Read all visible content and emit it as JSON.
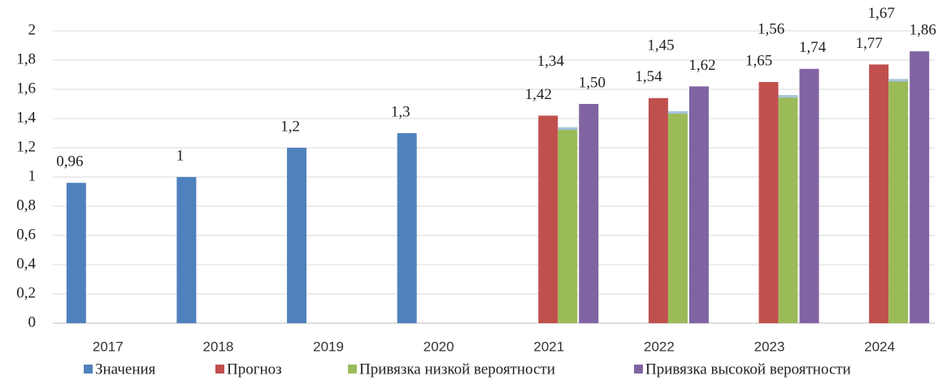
{
  "chart_data": {
    "type": "bar",
    "categories": [
      "2017",
      "2018",
      "2019",
      "2020",
      "2021",
      "2022",
      "2023",
      "2024"
    ],
    "series": [
      {
        "name": "Значения",
        "color": "#4f81bd",
        "values": [
          0.96,
          1,
          1.2,
          1.3,
          null,
          null,
          null,
          null
        ],
        "value_labels": [
          "0,96",
          "1",
          "1,2",
          "1,3",
          null,
          null,
          null,
          null
        ]
      },
      {
        "name": "Прогноз",
        "color": "#c0504d",
        "values": [
          null,
          null,
          null,
          null,
          1.42,
          1.54,
          1.65,
          1.77
        ],
        "value_labels": [
          null,
          null,
          null,
          null,
          "1,42",
          "1,54",
          "1,65",
          "1,77"
        ]
      },
      {
        "name": "Привязка низкой вероятности",
        "color": "#9bbb59",
        "values": [
          null,
          null,
          null,
          null,
          1.34,
          1.45,
          1.56,
          1.67
        ],
        "value_labels": [
          null,
          null,
          null,
          null,
          "1,34",
          "1,45",
          "1,56",
          "1,67"
        ]
      },
      {
        "name": "Привязка высокой вероятности",
        "color": "#8064a2",
        "values": [
          null,
          null,
          null,
          null,
          1.5,
          1.62,
          1.74,
          1.86
        ],
        "value_labels": [
          null,
          null,
          null,
          null,
          "1,50",
          "1,62",
          "1,74",
          "1,86"
        ]
      }
    ],
    "ylim": [
      0,
      2
    ],
    "yticks": [
      0,
      {
        "value": 0.2,
        "label": "0,2"
      },
      {
        "value": 0.4,
        "label": "0,4"
      },
      {
        "value": 0.6,
        "label": "0,6"
      },
      {
        "value": 0.8,
        "label": "0,8"
      },
      1,
      {
        "value": 1.2,
        "label": "1,2"
      },
      {
        "value": 1.4,
        "label": "1,4"
      },
      {
        "value": 1.6,
        "label": "1,6"
      },
      {
        "value": 1.8,
        "label": "1,8"
      },
      2
    ],
    "grid": true,
    "legend": "bottom"
  }
}
